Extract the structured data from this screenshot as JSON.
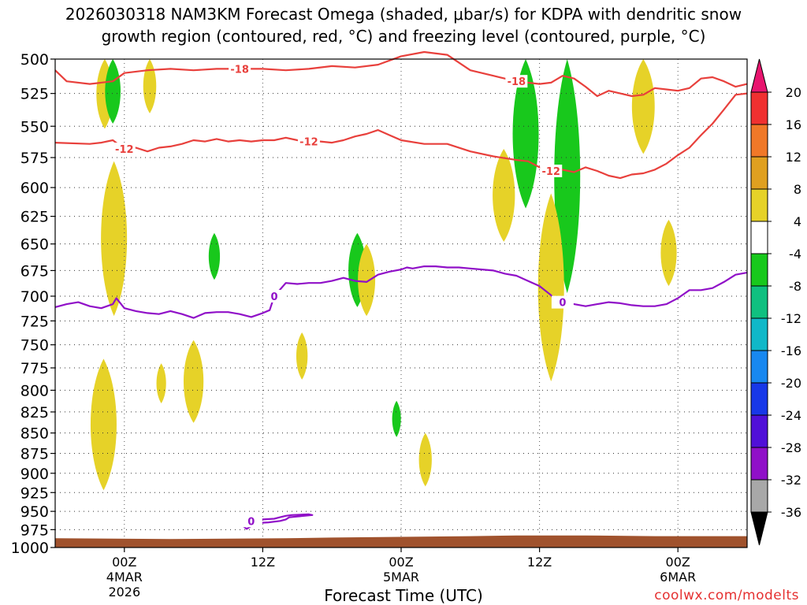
{
  "title_line1": "2026030318 NAM3KM Forecast Omega (shaded, μbar/s) for KDPA with dendritic snow",
  "title_line2": "growth region (contoured, red, °C) and freezing level (contoured, purple, °C)",
  "watermark": "coolwx.com/modelts",
  "chart_data": {
    "type": "time-height contour",
    "xlabel": "Forecast Time (UTC)",
    "x_ticks": [
      {
        "hour": 6,
        "lines": [
          "00Z",
          "4MAR",
          "2026"
        ]
      },
      {
        "hour": 18,
        "lines": [
          "12Z"
        ]
      },
      {
        "hour": 30,
        "lines": [
          "00Z",
          "5MAR"
        ]
      },
      {
        "hour": 42,
        "lines": [
          "12Z"
        ]
      },
      {
        "hour": 54,
        "lines": [
          "00Z",
          "6MAR"
        ]
      }
    ],
    "xlim_hours": [
      0,
      60
    ],
    "ylabel": "",
    "y_ticks": [
      500,
      525,
      550,
      575,
      600,
      625,
      650,
      675,
      700,
      725,
      750,
      775,
      800,
      825,
      850,
      875,
      900,
      925,
      950,
      975,
      1000
    ],
    "ylim_hpa": [
      500,
      1000
    ],
    "y_scale": "log-pressure",
    "grid": true,
    "omega_colorbar": {
      "levels": [
        20,
        16,
        12,
        8,
        4,
        -4,
        -8,
        -12,
        -16,
        -20,
        -24,
        -28,
        -32,
        -36
      ],
      "colors": [
        "#e8146e",
        "#f03030",
        "#f07828",
        "#e0a020",
        "#e6d228",
        "#ffffff",
        "#18c81c",
        "#10c080",
        "#10b8c8",
        "#1888f0",
        "#1838e8",
        "#5010d8",
        "#9010c8",
        "#a8a8a8",
        "#000000"
      ]
    },
    "dendritic_contours": [
      {
        "label": "-18",
        "color": "#e8403c",
        "points": [
          [
            0,
            508
          ],
          [
            1,
            516
          ],
          [
            3,
            518
          ],
          [
            5,
            516
          ],
          [
            6,
            510
          ],
          [
            8,
            508
          ],
          [
            10,
            507
          ],
          [
            12,
            508
          ],
          [
            14,
            507
          ],
          [
            16,
            507
          ],
          [
            18,
            507
          ],
          [
            20,
            508
          ],
          [
            22,
            507
          ],
          [
            24,
            505
          ],
          [
            26,
            506
          ],
          [
            28,
            504
          ],
          [
            30,
            498
          ],
          [
            32,
            495
          ],
          [
            34,
            497
          ],
          [
            36,
            508
          ],
          [
            38,
            512
          ],
          [
            40,
            516
          ],
          [
            42,
            518
          ],
          [
            43,
            517
          ],
          [
            44,
            512
          ],
          [
            45,
            514
          ],
          [
            46,
            520
          ],
          [
            47,
            527
          ],
          [
            48,
            523
          ],
          [
            49,
            525
          ],
          [
            50,
            527
          ],
          [
            51,
            526
          ],
          [
            52,
            521
          ],
          [
            53,
            522
          ],
          [
            54,
            523
          ],
          [
            55,
            521
          ],
          [
            56,
            514
          ],
          [
            57,
            513
          ],
          [
            58,
            516
          ],
          [
            59,
            520
          ],
          [
            60,
            518
          ]
        ]
      },
      {
        "label": "-12",
        "color": "#e8403c",
        "points": [
          [
            0,
            563
          ],
          [
            3,
            564
          ],
          [
            4,
            563
          ],
          [
            5,
            561
          ],
          [
            6,
            568
          ],
          [
            7,
            567
          ],
          [
            8,
            570
          ],
          [
            9,
            567
          ],
          [
            10,
            566
          ],
          [
            11,
            564
          ],
          [
            12,
            561
          ],
          [
            13,
            562
          ],
          [
            14,
            560
          ],
          [
            15,
            562
          ],
          [
            16,
            561
          ],
          [
            17,
            562
          ],
          [
            18,
            561
          ],
          [
            19,
            561
          ],
          [
            20,
            559
          ],
          [
            21,
            561
          ],
          [
            22,
            562
          ],
          [
            23,
            562
          ],
          [
            24,
            563
          ],
          [
            25,
            561
          ],
          [
            26,
            558
          ],
          [
            27,
            556
          ],
          [
            28,
            553
          ],
          [
            29,
            557
          ],
          [
            30,
            561
          ],
          [
            32,
            564
          ],
          [
            34,
            564
          ],
          [
            36,
            570
          ],
          [
            38,
            574
          ],
          [
            40,
            577
          ],
          [
            41,
            578
          ],
          [
            42,
            583
          ],
          [
            43,
            586
          ],
          [
            44,
            585
          ],
          [
            45,
            587
          ],
          [
            46,
            583
          ],
          [
            47,
            586
          ],
          [
            48,
            590
          ],
          [
            49,
            592
          ],
          [
            50,
            589
          ],
          [
            51,
            588
          ],
          [
            52,
            585
          ],
          [
            53,
            580
          ],
          [
            54,
            573
          ],
          [
            55,
            567
          ],
          [
            56,
            557
          ],
          [
            57,
            548
          ],
          [
            58,
            537
          ],
          [
            59,
            526
          ],
          [
            60,
            525
          ]
        ]
      }
    ],
    "freezing_level_contours": [
      {
        "label": "0",
        "color": "#9010c8",
        "points": [
          [
            0,
            711
          ],
          [
            1,
            708
          ],
          [
            2,
            706
          ],
          [
            3,
            710
          ],
          [
            4,
            712
          ],
          [
            5,
            708
          ],
          [
            5.3,
            702
          ],
          [
            6,
            712
          ],
          [
            7,
            715
          ],
          [
            8,
            717
          ],
          [
            9,
            718
          ],
          [
            10,
            715
          ],
          [
            11,
            718
          ],
          [
            12,
            722
          ],
          [
            13,
            717
          ],
          [
            14,
            716
          ],
          [
            15,
            716
          ],
          [
            16,
            718
          ],
          [
            17,
            721
          ],
          [
            18,
            717
          ],
          [
            18.6,
            714
          ],
          [
            19,
            700
          ],
          [
            20,
            687
          ],
          [
            21,
            688
          ],
          [
            22,
            687
          ],
          [
            23,
            687
          ],
          [
            24,
            685
          ],
          [
            25,
            682
          ],
          [
            26,
            685
          ],
          [
            27,
            686
          ],
          [
            28,
            679
          ],
          [
            29,
            676
          ],
          [
            30,
            674
          ],
          [
            30.5,
            672
          ],
          [
            31,
            673
          ],
          [
            32,
            671
          ],
          [
            33,
            671
          ],
          [
            34,
            672
          ],
          [
            35,
            672
          ],
          [
            36,
            673
          ],
          [
            37,
            674
          ],
          [
            38,
            675
          ],
          [
            39,
            678
          ],
          [
            40,
            680
          ],
          [
            41,
            685
          ],
          [
            42,
            690
          ],
          [
            43,
            699
          ],
          [
            43.5,
            707
          ],
          [
            44,
            706
          ],
          [
            45,
            708
          ],
          [
            46,
            710
          ],
          [
            47,
            708
          ],
          [
            48,
            706
          ],
          [
            49,
            707
          ],
          [
            50,
            709
          ],
          [
            51,
            710
          ],
          [
            52,
            710
          ],
          [
            53,
            708
          ],
          [
            53.5,
            705
          ],
          [
            54,
            702
          ],
          [
            55,
            694
          ],
          [
            56,
            694
          ],
          [
            57,
            692
          ],
          [
            58,
            686
          ],
          [
            59,
            679
          ],
          [
            60,
            677
          ]
        ]
      },
      {
        "label": "0",
        "color": "#9010c8",
        "points": [
          [
            16.3,
            970
          ],
          [
            16.5,
            966
          ],
          [
            17,
            963
          ],
          [
            18,
            961
          ],
          [
            19,
            960
          ],
          [
            19.5,
            958
          ],
          [
            20,
            956
          ],
          [
            20.5,
            955
          ],
          [
            22,
            954
          ],
          [
            22.3,
            955
          ],
          [
            21,
            957
          ],
          [
            20.3,
            958
          ],
          [
            20,
            961
          ],
          [
            19.5,
            963
          ],
          [
            18.5,
            965
          ],
          [
            17.3,
            966
          ],
          [
            17,
            970
          ],
          [
            16.6,
            974
          ],
          [
            16.3,
            970
          ]
        ]
      }
    ],
    "omega_regions": [
      {
        "sign": "+",
        "color": "#e6d228",
        "x": 4.3,
        "p0": 500,
        "p1": 552
      },
      {
        "sign": "-",
        "color": "#18c81c",
        "x": 5.0,
        "p0": 500,
        "p1": 548
      },
      {
        "sign": "+",
        "color": "#e6d228",
        "x": 8.2,
        "p0": 500,
        "p1": 540
      },
      {
        "sign": "+",
        "color": "#e6d228",
        "x": 5.1,
        "p0": 578,
        "p1": 720
      },
      {
        "sign": "+",
        "color": "#e6d228",
        "x": 4.2,
        "p0": 765,
        "p1": 922
      },
      {
        "sign": "+",
        "color": "#e6d228",
        "x": 9.2,
        "p0": 770,
        "p1": 815
      },
      {
        "sign": "+",
        "color": "#e6d228",
        "x": 12.0,
        "p0": 745,
        "p1": 838
      },
      {
        "sign": "-",
        "color": "#18c81c",
        "x": 13.8,
        "p0": 640,
        "p1": 684
      },
      {
        "sign": "+",
        "color": "#e6d228",
        "x": 21.4,
        "p0": 737,
        "p1": 788
      },
      {
        "sign": "-",
        "color": "#18c81c",
        "x": 26.2,
        "p0": 640,
        "p1": 711
      },
      {
        "sign": "+",
        "color": "#e6d228",
        "x": 27.0,
        "p0": 650,
        "p1": 720
      },
      {
        "sign": "-",
        "color": "#18c81c",
        "x": 29.6,
        "p0": 812,
        "p1": 855
      },
      {
        "sign": "+",
        "color": "#e6d228",
        "x": 32.1,
        "p0": 850,
        "p1": 917
      },
      {
        "sign": "+",
        "color": "#e6d228",
        "x": 38.9,
        "p0": 568,
        "p1": 648
      },
      {
        "sign": "-",
        "color": "#18c81c",
        "x": 40.8,
        "p0": 500,
        "p1": 618
      },
      {
        "sign": "-",
        "color": "#18c81c",
        "x": 44.4,
        "p0": 500,
        "p1": 697
      },
      {
        "sign": "+",
        "color": "#e6d228",
        "x": 43.0,
        "p0": 605,
        "p1": 790
      },
      {
        "sign": "+",
        "color": "#e6d228",
        "x": 53.2,
        "p0": 628,
        "p1": 690
      },
      {
        "sign": "+",
        "color": "#e6d228",
        "x": 51.0,
        "p0": 500,
        "p1": 572
      }
    ],
    "terrain_color": "#a0522d"
  }
}
